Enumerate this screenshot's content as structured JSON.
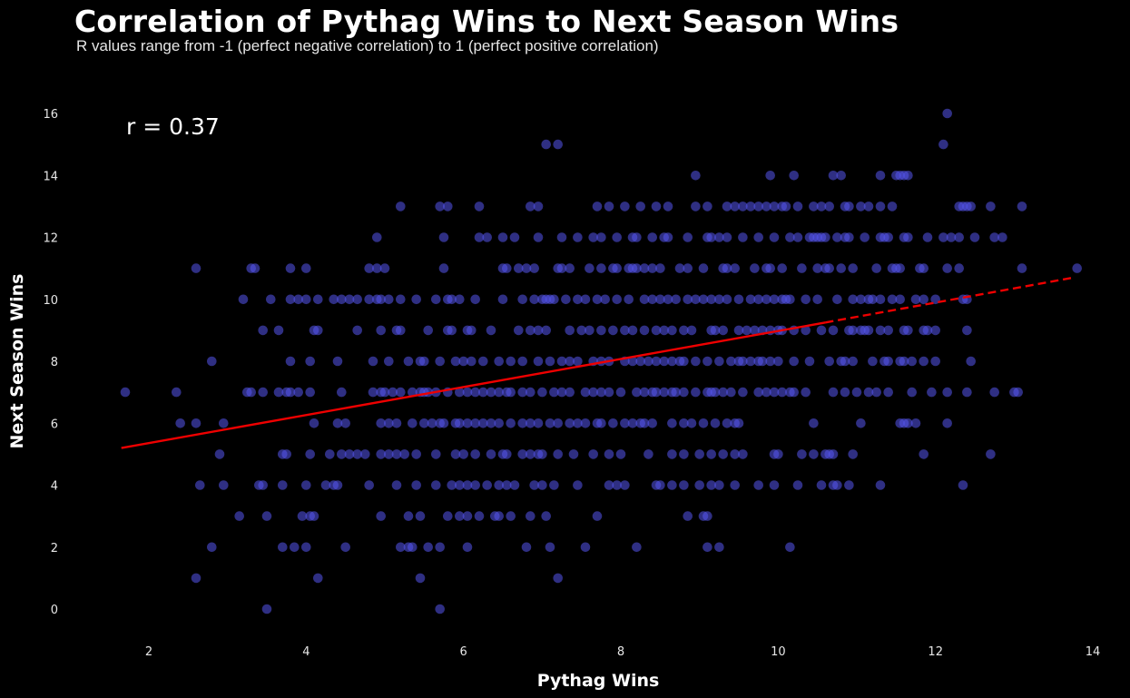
{
  "title": "Correlation of Pythag Wins to Next Season Wins",
  "subtitle": "R values range from -1 (perfect negative correlation) to 1 (perfect positive correlation)",
  "annotation": "r = 0.37",
  "colors": {
    "background": "#000000",
    "points": "#5555ee",
    "trendline": "#ee0000",
    "text": "#ffffff"
  },
  "chart_data": {
    "type": "scatter",
    "title": "Correlation of Pythag Wins to Next Season Wins",
    "subtitle": "R values range from -1 (perfect negative correlation) to 1 (perfect positive correlation)",
    "xlabel": "Pythag Wins",
    "ylabel": "Next Season Wins",
    "xlim": [
      1.4,
      14.2
    ],
    "ylim": [
      -0.9,
      16.6
    ],
    "xticks": [
      2,
      4,
      6,
      8,
      10,
      12,
      14
    ],
    "yticks": [
      0,
      2,
      4,
      6,
      8,
      10,
      12,
      14,
      16
    ],
    "grid": false,
    "legend": null,
    "annotations": [
      {
        "text": "r = 0.37",
        "x": 1.9,
        "y": 15.4
      }
    ],
    "correlation_r": 0.37,
    "trendline": {
      "x_start": 1.65,
      "y_start": 5.2,
      "x_solid_end": 10.6,
      "y_solid_end": 9.25,
      "x_end": 13.75,
      "y_end": 10.7,
      "style_after_solid_end": "dashed"
    },
    "rows": [
      {
        "y": 16,
        "x": [
          12.15
        ]
      },
      {
        "y": 15,
        "x": [
          7.05,
          7.2,
          12.1
        ]
      },
      {
        "y": 14,
        "x": [
          8.95,
          9.9,
          10.2,
          10.7,
          10.8,
          11.3,
          11.5,
          11.55,
          11.6,
          11.65
        ]
      },
      {
        "y": 13,
        "x": [
          5.2,
          5.7,
          5.8,
          6.2,
          6.85,
          6.95,
          7.7,
          7.85,
          8.05,
          8.25,
          8.45,
          8.6,
          8.95,
          9.1,
          9.35,
          9.45,
          9.55,
          9.65,
          9.75,
          9.85,
          9.95,
          10.05,
          10.1,
          10.25,
          10.45,
          10.55,
          10.65,
          10.85,
          10.9,
          11.05,
          11.15,
          11.3,
          11.45,
          12.3,
          12.35,
          12.4,
          12.45,
          12.7,
          13.1
        ]
      },
      {
        "y": 12,
        "x": [
          4.9,
          5.75,
          6.2,
          6.3,
          6.5,
          6.65,
          6.95,
          7.25,
          7.45,
          7.65,
          7.75,
          7.95,
          8.15,
          8.2,
          8.4,
          8.55,
          8.6,
          8.85,
          9.1,
          9.15,
          9.25,
          9.35,
          9.55,
          9.75,
          9.95,
          10.15,
          10.25,
          10.4,
          10.45,
          10.5,
          10.55,
          10.6,
          10.75,
          10.85,
          10.9,
          11.1,
          11.3,
          11.35,
          11.4,
          11.6,
          11.65,
          11.9,
          12.1,
          12.2,
          12.3,
          12.5,
          12.75,
          12.85
        ]
      },
      {
        "y": 11,
        "x": [
          2.6,
          3.3,
          3.35,
          3.8,
          4.0,
          4.8,
          4.9,
          5.0,
          5.75,
          6.5,
          6.55,
          6.7,
          6.8,
          6.9,
          7.2,
          7.25,
          7.35,
          7.6,
          7.75,
          7.9,
          7.95,
          8.1,
          8.15,
          8.2,
          8.3,
          8.4,
          8.5,
          8.75,
          8.85,
          9.05,
          9.3,
          9.35,
          9.45,
          9.7,
          9.85,
          9.9,
          10.05,
          10.3,
          10.5,
          10.6,
          10.65,
          10.8,
          10.95,
          11.25,
          11.45,
          11.5,
          11.55,
          11.8,
          11.85,
          12.15,
          12.3,
          13.1,
          13.8
        ]
      },
      {
        "y": 10,
        "x": [
          3.2,
          3.55,
          3.8,
          3.9,
          4.0,
          4.15,
          4.35,
          4.45,
          4.55,
          4.65,
          4.8,
          4.9,
          4.95,
          5.05,
          5.2,
          5.4,
          5.65,
          5.8,
          5.85,
          5.95,
          6.15,
          6.5,
          6.75,
          6.9,
          7.0,
          7.05,
          7.1,
          7.15,
          7.3,
          7.45,
          7.55,
          7.7,
          7.8,
          7.95,
          8.1,
          8.3,
          8.4,
          8.5,
          8.6,
          8.7,
          8.85,
          8.95,
          9.05,
          9.15,
          9.25,
          9.35,
          9.5,
          9.65,
          9.75,
          9.85,
          9.95,
          10.05,
          10.1,
          10.15,
          10.35,
          10.5,
          10.75,
          10.95,
          11.05,
          11.15,
          11.2,
          11.3,
          11.45,
          11.55,
          11.75,
          11.85,
          12.0,
          12.35,
          12.4
        ]
      },
      {
        "y": 9,
        "x": [
          3.45,
          3.65,
          4.1,
          4.15,
          4.65,
          4.95,
          5.15,
          5.2,
          5.55,
          5.8,
          5.85,
          6.05,
          6.1,
          6.35,
          6.7,
          6.85,
          6.95,
          7.05,
          7.35,
          7.5,
          7.6,
          7.75,
          7.9,
          8.05,
          8.15,
          8.3,
          8.45,
          8.55,
          8.65,
          8.8,
          8.9,
          9.15,
          9.2,
          9.3,
          9.5,
          9.6,
          9.7,
          9.8,
          9.9,
          10.0,
          10.05,
          10.2,
          10.35,
          10.55,
          10.7,
          10.9,
          10.95,
          11.05,
          11.1,
          11.15,
          11.3,
          11.4,
          11.6,
          11.65,
          11.85,
          11.9,
          12.0,
          12.4
        ]
      },
      {
        "y": 8,
        "x": [
          2.8,
          3.8,
          4.05,
          4.4,
          4.85,
          5.05,
          5.3,
          5.45,
          5.5,
          5.7,
          5.9,
          6.0,
          6.1,
          6.25,
          6.45,
          6.6,
          6.75,
          6.95,
          7.1,
          7.25,
          7.35,
          7.45,
          7.65,
          7.75,
          7.85,
          8.05,
          8.15,
          8.25,
          8.35,
          8.45,
          8.55,
          8.65,
          8.75,
          8.8,
          8.95,
          9.1,
          9.25,
          9.4,
          9.5,
          9.55,
          9.65,
          9.75,
          9.8,
          9.9,
          10.0,
          10.2,
          10.4,
          10.65,
          10.8,
          10.85,
          10.95,
          11.2,
          11.35,
          11.4,
          11.55,
          11.6,
          11.7,
          11.85,
          12.0,
          12.45
        ]
      },
      {
        "y": 7,
        "x": [
          1.7,
          2.35,
          3.25,
          3.3,
          3.45,
          3.65,
          3.75,
          3.8,
          3.9,
          4.05,
          4.45,
          4.85,
          4.95,
          5.0,
          5.1,
          5.2,
          5.35,
          5.45,
          5.5,
          5.55,
          5.65,
          5.8,
          5.95,
          6.05,
          6.15,
          6.25,
          6.35,
          6.45,
          6.55,
          6.6,
          6.75,
          6.85,
          7.0,
          7.15,
          7.25,
          7.35,
          7.55,
          7.65,
          7.75,
          7.85,
          8.0,
          8.2,
          8.3,
          8.4,
          8.45,
          8.55,
          8.65,
          8.7,
          8.8,
          8.95,
          9.1,
          9.15,
          9.2,
          9.3,
          9.4,
          9.55,
          9.75,
          9.85,
          9.95,
          10.05,
          10.15,
          10.2,
          10.35,
          10.7,
          10.85,
          11.0,
          11.15,
          11.25,
          11.4,
          11.7,
          11.95,
          12.15,
          12.4,
          12.75,
          13.0,
          13.05
        ]
      },
      {
        "y": 6,
        "x": [
          2.4,
          2.6,
          2.95,
          4.1,
          4.4,
          4.5,
          4.95,
          5.05,
          5.15,
          5.35,
          5.5,
          5.6,
          5.7,
          5.75,
          5.9,
          5.95,
          6.05,
          6.15,
          6.25,
          6.35,
          6.45,
          6.6,
          6.75,
          6.85,
          6.95,
          7.1,
          7.2,
          7.35,
          7.45,
          7.55,
          7.7,
          7.75,
          7.9,
          8.05,
          8.15,
          8.25,
          8.3,
          8.4,
          8.65,
          8.8,
          8.9,
          9.05,
          9.2,
          9.35,
          9.45,
          9.5,
          10.45,
          11.05,
          11.55,
          11.6,
          11.65,
          11.75,
          12.15
        ]
      },
      {
        "y": 5,
        "x": [
          2.9,
          3.7,
          3.75,
          4.05,
          4.3,
          4.45,
          4.55,
          4.65,
          4.75,
          4.95,
          5.05,
          5.15,
          5.25,
          5.4,
          5.65,
          5.9,
          6.0,
          6.15,
          6.35,
          6.5,
          6.55,
          6.75,
          6.85,
          6.95,
          7.0,
          7.2,
          7.4,
          7.65,
          7.85,
          8.0,
          8.35,
          8.65,
          8.8,
          9.0,
          9.15,
          9.3,
          9.45,
          9.55,
          9.95,
          10.0,
          10.3,
          10.45,
          10.6,
          10.65,
          10.7,
          10.95,
          11.85,
          12.7
        ]
      },
      {
        "y": 4,
        "x": [
          2.65,
          2.95,
          3.4,
          3.45,
          3.7,
          4.0,
          4.25,
          4.35,
          4.4,
          4.8,
          5.15,
          5.4,
          5.65,
          5.85,
          5.95,
          6.05,
          6.15,
          6.3,
          6.45,
          6.55,
          6.65,
          6.9,
          7.0,
          7.15,
          7.45,
          7.85,
          7.95,
          8.05,
          8.45,
          8.5,
          8.65,
          8.8,
          9.0,
          9.15,
          9.25,
          9.45,
          9.75,
          9.95,
          10.25,
          10.55,
          10.7,
          10.75,
          10.9,
          11.3,
          12.35
        ]
      },
      {
        "y": 3,
        "x": [
          3.15,
          3.5,
          3.95,
          4.05,
          4.1,
          4.95,
          5.3,
          5.45,
          5.8,
          5.95,
          6.05,
          6.2,
          6.4,
          6.45,
          6.6,
          6.85,
          7.05,
          7.7,
          8.85,
          9.05,
          9.1
        ]
      },
      {
        "y": 2,
        "x": [
          2.8,
          3.7,
          3.85,
          4.0,
          4.5,
          5.2,
          5.3,
          5.35,
          5.55,
          5.7,
          6.05,
          6.8,
          7.1,
          7.55,
          8.2,
          9.1,
          9.25,
          10.15
        ]
      },
      {
        "y": 1,
        "x": [
          2.6,
          4.15,
          5.45,
          7.2
        ]
      },
      {
        "y": 0,
        "x": [
          3.5,
          5.7
        ]
      }
    ]
  }
}
